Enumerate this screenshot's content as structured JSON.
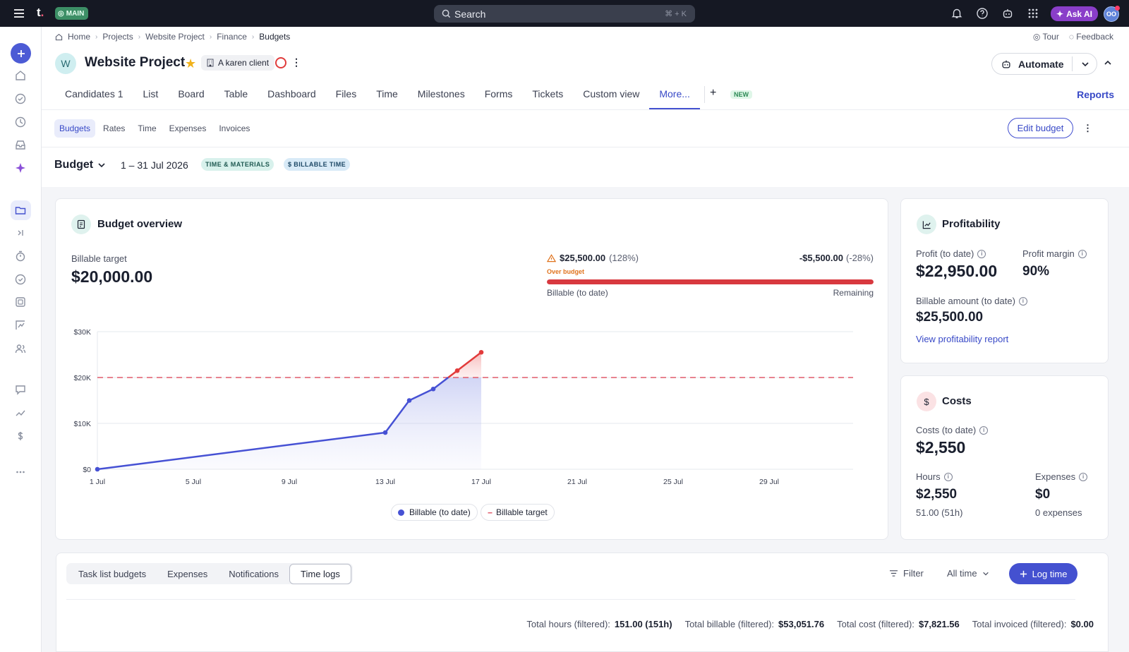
{
  "topbar": {
    "workspace_badge": "MAIN",
    "search_placeholder": "Search",
    "search_shortcut": "⌘ + K",
    "ask_ai": "Ask AI",
    "avatar_initials": "OO"
  },
  "breadcrumb": [
    "Home",
    "Projects",
    "Website Project",
    "Finance",
    "Budgets"
  ],
  "top_links": {
    "tour": "Tour",
    "feedback": "Feedback"
  },
  "project": {
    "avatar": "W",
    "title": "Website Project",
    "client": "A karen client",
    "starred": true
  },
  "automate": "Automate",
  "tabs": [
    "Candidates 1",
    "List",
    "Board",
    "Table",
    "Dashboard",
    "Files",
    "Time",
    "Milestones",
    "Forms",
    "Tickets",
    "Custom view",
    "More..."
  ],
  "active_tab": "More...",
  "new_badge": "NEW",
  "reports": "Reports",
  "subtabs": [
    "Budgets",
    "Rates",
    "Time",
    "Expenses",
    "Invoices"
  ],
  "edit_budget": "Edit budget",
  "budget": {
    "selector": "Budget",
    "date_range": "1 – 31 Jul 2026",
    "type_pill": "TIME & MATERIALS",
    "billable_pill": "$ BILLABLE TIME"
  },
  "overview": {
    "title": "Budget overview",
    "target_label": "Billable target",
    "target_value": "$20,000.00",
    "billable_amount": "$25,500.00",
    "billable_pct": "(128%)",
    "remaining_amount": "-$5,500.00",
    "remaining_pct": "(-28%)",
    "over_budget": "Over budget",
    "bar_left_label": "Billable (to date)",
    "bar_right_label": "Remaining",
    "bar_fill": 1.0
  },
  "chart_data": {
    "type": "line",
    "x_ticks": [
      "1 Jul",
      "5 Jul",
      "9 Jul",
      "13 Jul",
      "17 Jul",
      "21 Jul",
      "25 Jul",
      "29 Jul"
    ],
    "y_ticks": [
      "$0",
      "$10K",
      "$20K",
      "$30K"
    ],
    "ylim": [
      0,
      30000
    ],
    "xlim": [
      1,
      32.5
    ],
    "target": 20000,
    "series": [
      {
        "name": "Billable (to date)",
        "x": [
          1,
          13,
          14,
          15,
          16,
          17
        ],
        "y": [
          0,
          8000,
          15000,
          17500,
          21500,
          25500
        ]
      },
      {
        "name": "Billable target",
        "value": 20000
      }
    ],
    "colors": {
      "billable": "#4651d4",
      "over": "#e23b3b",
      "target": "#e05a6a"
    },
    "legend_position": "bottom"
  },
  "profitability": {
    "title": "Profitability",
    "profit_label": "Profit (to date)",
    "profit_value": "$22,950.00",
    "margin_label": "Profit margin",
    "margin_value": "90%",
    "billable_label": "Billable amount (to date)",
    "billable_value": "$25,500.00",
    "report_link": "View profitability report"
  },
  "costs": {
    "title": "Costs",
    "costs_label": "Costs (to date)",
    "costs_value": "$2,550",
    "hours_label": "Hours",
    "hours_value": "$2,550",
    "hours_sub": "51.00 (51h)",
    "expenses_label": "Expenses",
    "expenses_value": "$0",
    "expenses_sub": "0 expenses"
  },
  "bottom": {
    "tabs": [
      "Task list budgets",
      "Expenses",
      "Notifications",
      "Time logs"
    ],
    "active_tab": "Time logs",
    "filter": "Filter",
    "range": "All time",
    "log_time": "Log time",
    "totals": [
      {
        "label": "Total hours (filtered):",
        "value": "151.00 (151h)"
      },
      {
        "label": "Total billable (filtered):",
        "value": "$53,051.76"
      },
      {
        "label": "Total cost (filtered):",
        "value": "$7,821.56"
      },
      {
        "label": "Total invoiced (filtered):",
        "value": "$0.00"
      }
    ]
  }
}
